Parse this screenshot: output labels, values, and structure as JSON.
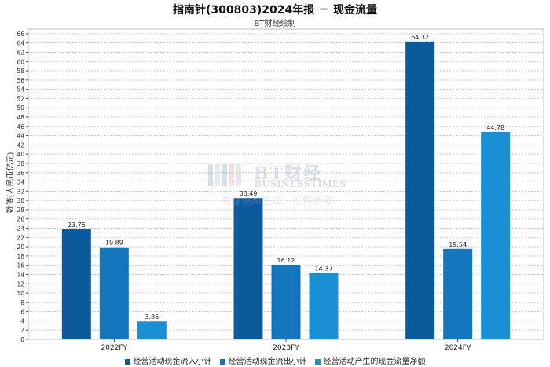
{
  "chart_data": {
    "type": "bar",
    "title": "指南针(300803)2024年报 － 现金流量",
    "subtitle": "BT财经绘制",
    "ylabel": "数值(人民币亿元)",
    "xlabel": "",
    "categories": [
      "2022FY",
      "2023FY",
      "2024FY"
    ],
    "series": [
      {
        "name": "经营活动现金流入小计",
        "values": [
          23.75,
          30.49,
          64.32
        ],
        "color": "#0a5a9c"
      },
      {
        "name": "经营活动现金流出小计",
        "values": [
          19.89,
          16.12,
          19.54
        ],
        "color": "#1476bd"
      },
      {
        "name": "经营活动产生的现金流量净额",
        "values": [
          3.86,
          14.37,
          44.78
        ],
        "color": "#1a8fd4"
      }
    ],
    "ylim": [
      0,
      67
    ],
    "ytick_step": 2,
    "grid": true,
    "legend_position": "bottom"
  },
  "watermark": {
    "brand": "BT财经",
    "sub": "BUSINESSTIMES",
    "note": "内容由AI生成，仅供参考"
  }
}
